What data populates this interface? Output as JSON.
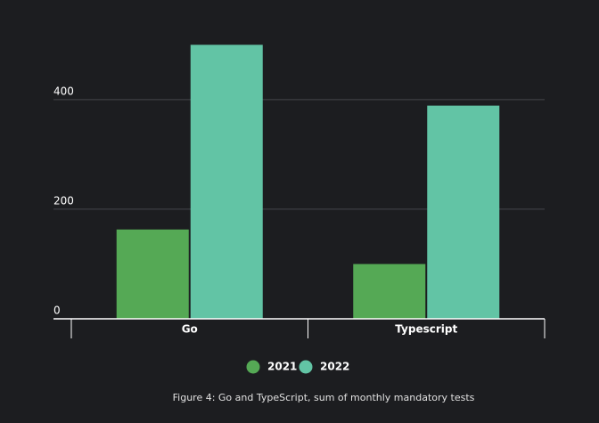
{
  "chart_data": {
    "type": "bar",
    "categories": [
      "Go",
      "Typescript"
    ],
    "series": [
      {
        "name": "2021",
        "color": "#55a955",
        "values": [
          163,
          100
        ]
      },
      {
        "name": "2022",
        "color": "#62c4a5",
        "values": [
          500,
          389
        ]
      }
    ],
    "ylim": [
      0,
      520
    ],
    "yticks": [
      0,
      200,
      400
    ],
    "grid": true,
    "caption": "Figure 4: Go and TypeScript, sum of monthly mandatory tests"
  }
}
